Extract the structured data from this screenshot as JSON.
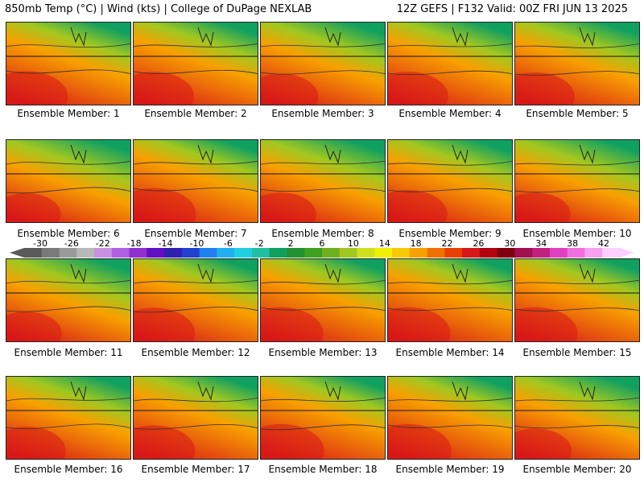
{
  "header": {
    "left": "850mb Temp (°C) | Wind (kts) | College of DuPage NEXLAB",
    "right": "12Z GEFS | F132 Valid: 00Z FRI JUN 13 2025"
  },
  "colorbar": {
    "labels": [
      "-30",
      "-26",
      "-22",
      "-18",
      "-14",
      "-10",
      "-6",
      "-2",
      "2",
      "6",
      "10",
      "14",
      "18",
      "22",
      "26",
      "30",
      "34",
      "38",
      "42"
    ],
    "colors": [
      "#5a5a5a",
      "#7a7a7a",
      "#9a9a9a",
      "#b8b8b8",
      "#c890e0",
      "#b060e0",
      "#9030d0",
      "#6010c0",
      "#3020b0",
      "#2040d0",
      "#2080f0",
      "#20b0f0",
      "#20d0e0",
      "#20c0a0",
      "#10a060",
      "#209030",
      "#40a020",
      "#70b020",
      "#a0c820",
      "#d0e020",
      "#f0f000",
      "#f8c800",
      "#f8a000",
      "#f07000",
      "#e84000",
      "#d81818",
      "#b00010",
      "#800010",
      "#a01050",
      "#c02080",
      "#e040c0",
      "#f070e0",
      "#f8a0f0",
      "#ffd0ff"
    ]
  },
  "palette": {
    "cool": "#10a060",
    "mid": "#a0c820",
    "warm": "#f8a000",
    "hot": "#d81818",
    "contour": "#303030"
  },
  "members": [
    {
      "label": "Ensemble Member: 1",
      "warmth": 0.85
    },
    {
      "label": "Ensemble Member: 2",
      "warmth": 0.8
    },
    {
      "label": "Ensemble Member: 3",
      "warmth": 0.65
    },
    {
      "label": "Ensemble Member: 4",
      "warmth": 0.8
    },
    {
      "label": "Ensemble Member: 5",
      "warmth": 0.75
    },
    {
      "label": "Ensemble Member: 6",
      "warmth": 0.5
    },
    {
      "label": "Ensemble Member: 7",
      "warmth": 0.9
    },
    {
      "label": "Ensemble Member: 8",
      "warmth": 0.55
    },
    {
      "label": "Ensemble Member: 9",
      "warmth": 0.75
    },
    {
      "label": "Ensemble Member: 10",
      "warmth": 0.55
    },
    {
      "label": "Ensemble Member: 11",
      "warmth": 0.55
    },
    {
      "label": "Ensemble Member: 12",
      "warmth": 0.85
    },
    {
      "label": "Ensemble Member: 13",
      "warmth": 0.9
    },
    {
      "label": "Ensemble Member: 14",
      "warmth": 0.9
    },
    {
      "label": "Ensemble Member: 15",
      "warmth": 0.9
    },
    {
      "label": "Ensemble Member: 16",
      "warmth": 0.75
    },
    {
      "label": "Ensemble Member: 17",
      "warmth": 0.85
    },
    {
      "label": "Ensemble Member: 18",
      "warmth": 0.95
    },
    {
      "label": "Ensemble Member: 19",
      "warmth": 0.95
    },
    {
      "label": "Ensemble Member: 20",
      "warmth": 0.6
    }
  ]
}
